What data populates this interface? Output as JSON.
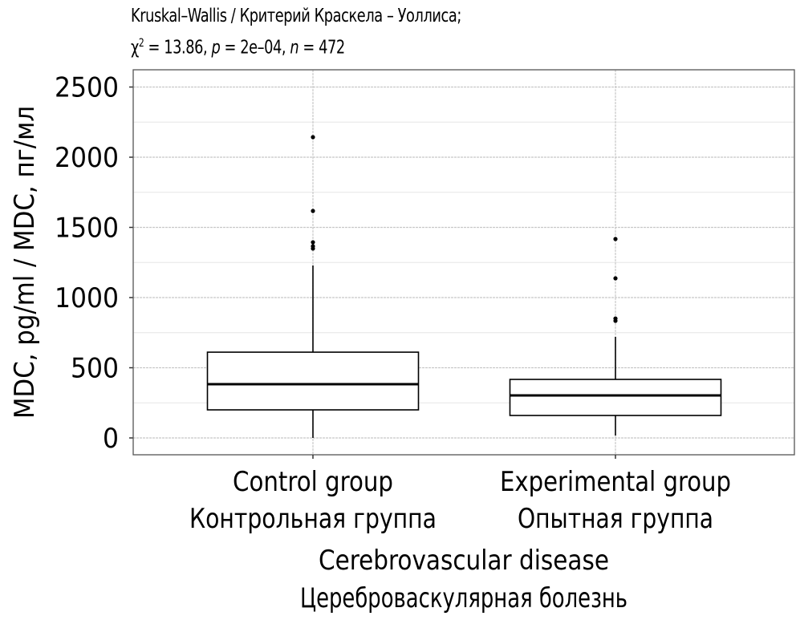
{
  "chart_data": {
    "type": "box",
    "title": "Kruskal–Wallis / Критерий Краскела – Уоллиса;",
    "subtitle": {
      "chi_symbol": "χ",
      "chi_exp": "2",
      "chi_text": " = 13.86, ",
      "p_symbol": "p",
      "p_text": " = 2e–04, ",
      "n_symbol": "n",
      "n_text": " = 472"
    },
    "ylabel": "MDC, pg/ml / MDC, пг/мл",
    "xlabel_line1": "Cerebrovascular disease",
    "xlabel_line2": "Цереброваскулярная болезнь",
    "ylim": [
      -120,
      2610
    ],
    "yticks": [
      0,
      500,
      1000,
      1500,
      2000,
      2500
    ],
    "ytick_labels": [
      "0",
      "500",
      "1000",
      "1500",
      "2000",
      "2500"
    ],
    "grid": true,
    "categories": [
      {
        "label_en": "Control group",
        "label_ru": "Контрольная группа"
      },
      {
        "label_en": "Experimental group",
        "label_ru": "Опытная группа"
      }
    ],
    "series": [
      {
        "name": "Control group",
        "whisker_low": 0,
        "q1": 200,
        "median": 383,
        "q3": 611,
        "whisker_high": 1229,
        "outliers": [
          1349,
          1366,
          1394,
          1617,
          2143
        ]
      },
      {
        "name": "Experimental group",
        "whisker_low": 17,
        "q1": 160,
        "median": 303,
        "q3": 417,
        "whisker_high": 720,
        "outliers": [
          834,
          851,
          1137,
          1417
        ]
      }
    ],
    "colors": {
      "box": "#000000",
      "grid_major": "#c8c8c8",
      "grid_minor": "#e6e6e6",
      "frame": "#555555"
    }
  }
}
